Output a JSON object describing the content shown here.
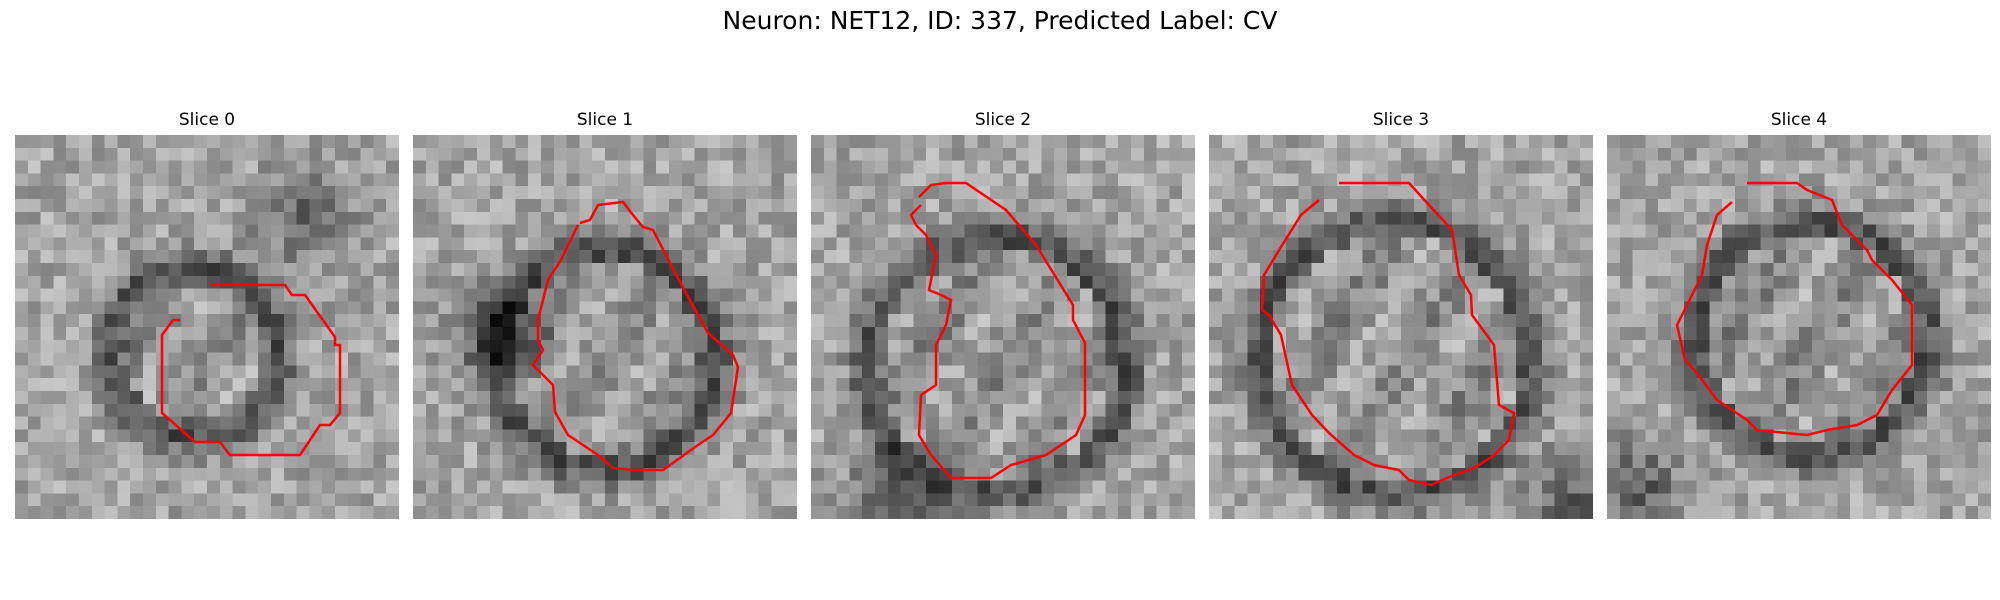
{
  "figure": {
    "title": "Neuron: NET12, ID: 337, Predicted Label: CV",
    "contour_color": "#ff0000"
  },
  "panels": [
    {
      "title": "Slice 0"
    },
    {
      "title": "Slice 1"
    },
    {
      "title": "Slice 2"
    },
    {
      "title": "Slice 3"
    },
    {
      "title": "Slice 4"
    }
  ]
}
